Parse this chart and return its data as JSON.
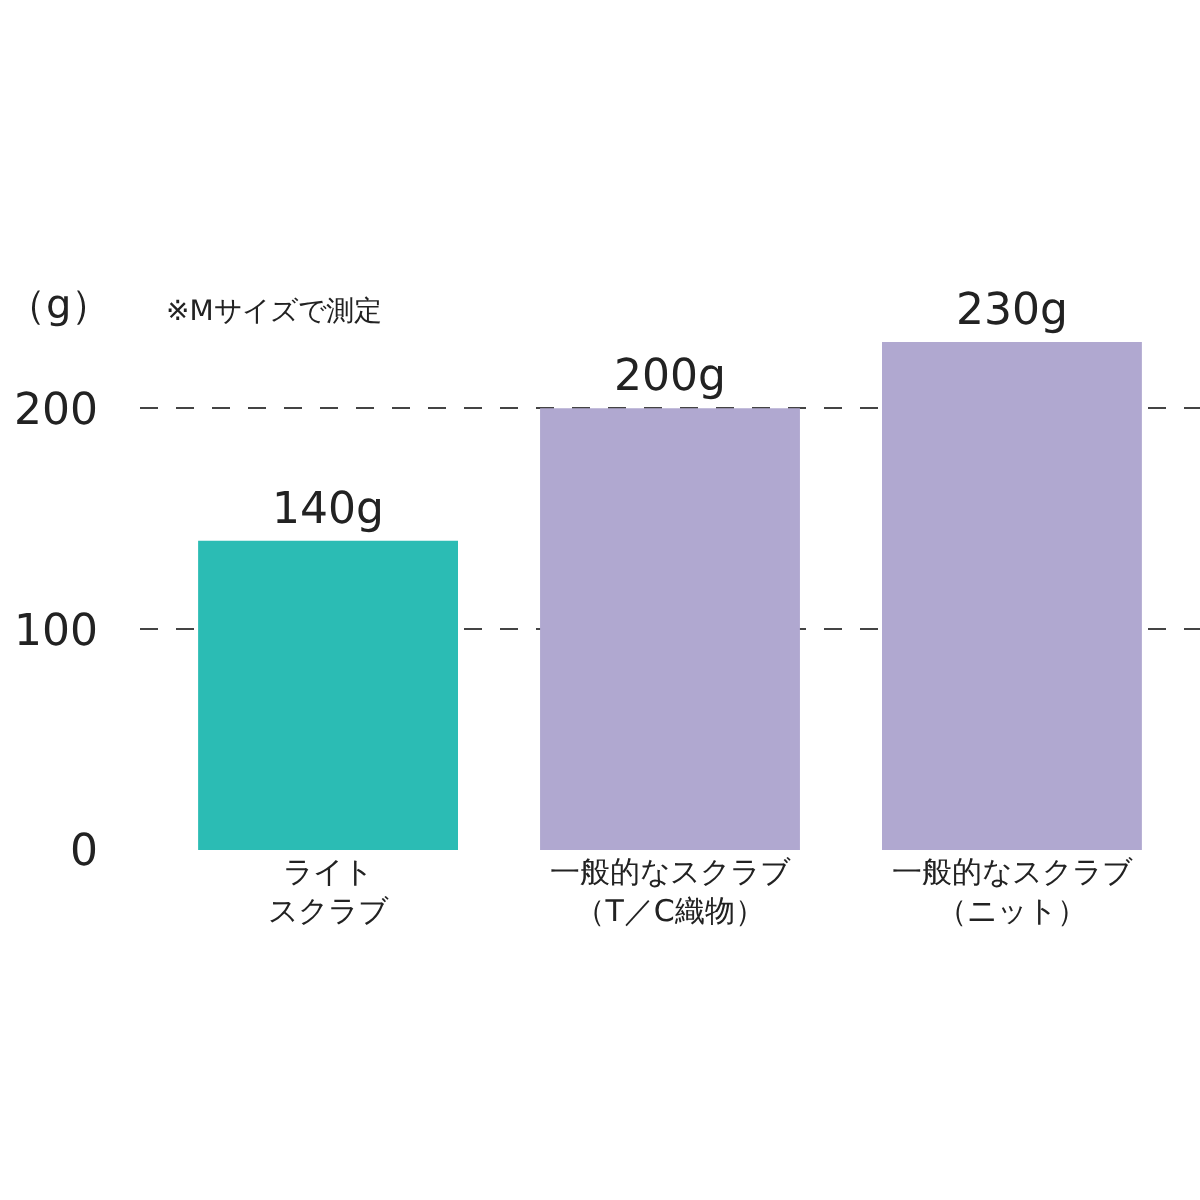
{
  "chart_data": {
    "type": "bar",
    "ylabel": "（g）",
    "categories": [
      "ライトスクラブ",
      "一般的なスクラブ（T／C織物）",
      "一般的なスクラブ（ニット）"
    ],
    "values": [
      140,
      200,
      230
    ],
    "colors": [
      "#2bbcb4",
      "#b0a8d0",
      "#b0a8d0"
    ],
    "value_labels": [
      "140g",
      "200g",
      "230g"
    ],
    "ylim": [
      0,
      230
    ],
    "yticks": [
      0,
      100,
      200
    ],
    "grid": "y",
    "annotations": [
      "※Mサイズで測定"
    ]
  }
}
